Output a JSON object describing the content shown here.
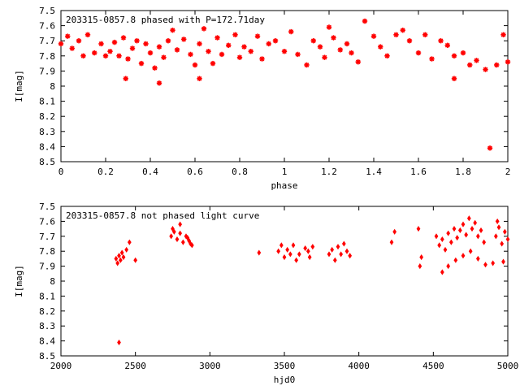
{
  "chart_data": [
    {
      "type": "scatter",
      "title": "203315-0857.8 phased with P=172.71day",
      "xlabel": "phase",
      "ylabel": "I[mag]",
      "xlim": [
        0,
        2
      ],
      "ylim": [
        7.5,
        8.5
      ],
      "y_inverted": true,
      "xticks": [
        "0",
        "0.2",
        "0.4",
        "0.6",
        "0.8",
        "1",
        "1.2",
        "1.4",
        "1.6",
        "1.8",
        "2"
      ],
      "yticks": [
        "7.5",
        "7.6",
        "7.7",
        "7.8",
        "7.9",
        "8",
        "8.1",
        "8.2",
        "8.3",
        "8.4",
        "8.5"
      ],
      "grid": false,
      "marker_color": "#ff0000",
      "marker": "asterisk",
      "series": [
        {
          "x": [
            0.0,
            0.03,
            0.05,
            0.08,
            0.1,
            0.12,
            0.15,
            0.18,
            0.2,
            0.22,
            0.24,
            0.26,
            0.28,
            0.3,
            0.32,
            0.34,
            0.36,
            0.38,
            0.4,
            0.42,
            0.44,
            0.46,
            0.48,
            0.5,
            0.52,
            0.55,
            0.58,
            0.6,
            0.62,
            0.64,
            0.66,
            0.68,
            0.7,
            0.72,
            0.75,
            0.78,
            0.8,
            0.82,
            0.85,
            0.88,
            0.9,
            0.93,
            0.96,
            1.0,
            1.03,
            1.06,
            1.1,
            1.13,
            1.16,
            1.18,
            1.2,
            1.22,
            1.25,
            1.28,
            1.3,
            1.33,
            1.36,
            1.4,
            1.43,
            1.46,
            1.5,
            1.53,
            1.56,
            1.6,
            1.63,
            1.66,
            1.7,
            1.73,
            1.76,
            1.8,
            1.83,
            1.86,
            1.9,
            1.92,
            1.95,
            1.98,
            2.0,
            0.29,
            0.44,
            0.62,
            1.76
          ],
          "y": [
            7.72,
            7.67,
            7.75,
            7.7,
            7.8,
            7.66,
            7.78,
            7.72,
            7.8,
            7.77,
            7.71,
            7.8,
            7.68,
            7.82,
            7.75,
            7.7,
            7.85,
            7.72,
            7.78,
            7.88,
            7.74,
            7.81,
            7.7,
            7.63,
            7.76,
            7.69,
            7.79,
            7.86,
            7.72,
            7.62,
            7.77,
            7.85,
            7.68,
            7.79,
            7.73,
            7.66,
            7.81,
            7.74,
            7.77,
            7.67,
            7.82,
            7.72,
            7.7,
            7.77,
            7.64,
            7.79,
            7.86,
            7.7,
            7.74,
            7.81,
            7.61,
            7.68,
            7.76,
            7.72,
            7.78,
            7.84,
            7.57,
            7.67,
            7.74,
            7.8,
            7.66,
            7.63,
            7.7,
            7.78,
            7.66,
            7.82,
            7.7,
            7.73,
            7.8,
            7.78,
            7.86,
            7.83,
            7.89,
            8.41,
            7.86,
            7.66,
            7.84,
            7.95,
            7.98,
            7.95,
            7.95
          ]
        }
      ]
    },
    {
      "type": "scatter",
      "title": "203315-0857.8 not phased light curve",
      "xlabel": "hjd0",
      "ylabel": "I[mag]",
      "xlim": [
        2000,
        5000
      ],
      "ylim": [
        7.5,
        8.5
      ],
      "y_inverted": true,
      "xticks": [
        "2000",
        "2500",
        "3000",
        "3500",
        "4000",
        "4500",
        "5000"
      ],
      "yticks": [
        "7.5",
        "7.6",
        "7.7",
        "7.8",
        "7.9",
        "8",
        "8.1",
        "8.2",
        "8.3",
        "8.4",
        "8.5"
      ],
      "grid": false,
      "marker_color": "#ff0000",
      "marker": "diamond",
      "series": [
        {
          "x": [
            2370,
            2380,
            2390,
            2400,
            2410,
            2420,
            2440,
            2460,
            2500,
            2390,
            2740,
            2760,
            2780,
            2800,
            2820,
            2840,
            2860,
            2880,
            2750,
            2800,
            2850,
            2870,
            3330,
            3460,
            3480,
            3500,
            3520,
            3540,
            3560,
            3580,
            3600,
            3640,
            3660,
            3670,
            3690,
            3800,
            3820,
            3840,
            3860,
            3880,
            3900,
            3920,
            3940,
            4220,
            4240,
            4400,
            4420,
            4410,
            4520,
            4540,
            4560,
            4580,
            4600,
            4620,
            4640,
            4660,
            4680,
            4700,
            4720,
            4740,
            4760,
            4780,
            4800,
            4820,
            4840,
            4560,
            4600,
            4650,
            4700,
            4750,
            4800,
            4850,
            4900,
            4920,
            4940,
            4960,
            4980,
            5000,
            4930,
            4970
          ],
          "y": [
            7.85,
            7.88,
            7.83,
            7.86,
            7.81,
            7.84,
            7.79,
            7.74,
            7.86,
            8.41,
            7.7,
            7.67,
            7.72,
            7.68,
            7.74,
            7.7,
            7.73,
            7.76,
            7.65,
            7.62,
            7.71,
            7.75,
            7.81,
            7.8,
            7.76,
            7.84,
            7.79,
            7.82,
            7.76,
            7.86,
            7.82,
            7.78,
            7.8,
            7.84,
            7.77,
            7.82,
            7.79,
            7.86,
            7.77,
            7.82,
            7.75,
            7.8,
            7.83,
            7.74,
            7.67,
            7.65,
            7.84,
            7.9,
            7.7,
            7.76,
            7.72,
            7.79,
            7.68,
            7.74,
            7.65,
            7.71,
            7.66,
            7.62,
            7.69,
            7.58,
            7.65,
            7.61,
            7.7,
            7.66,
            7.74,
            7.94,
            7.9,
            7.86,
            7.83,
            7.8,
            7.85,
            7.89,
            7.88,
            7.7,
            7.64,
            7.75,
            7.67,
            7.72,
            7.6,
            7.87
          ]
        }
      ]
    }
  ]
}
